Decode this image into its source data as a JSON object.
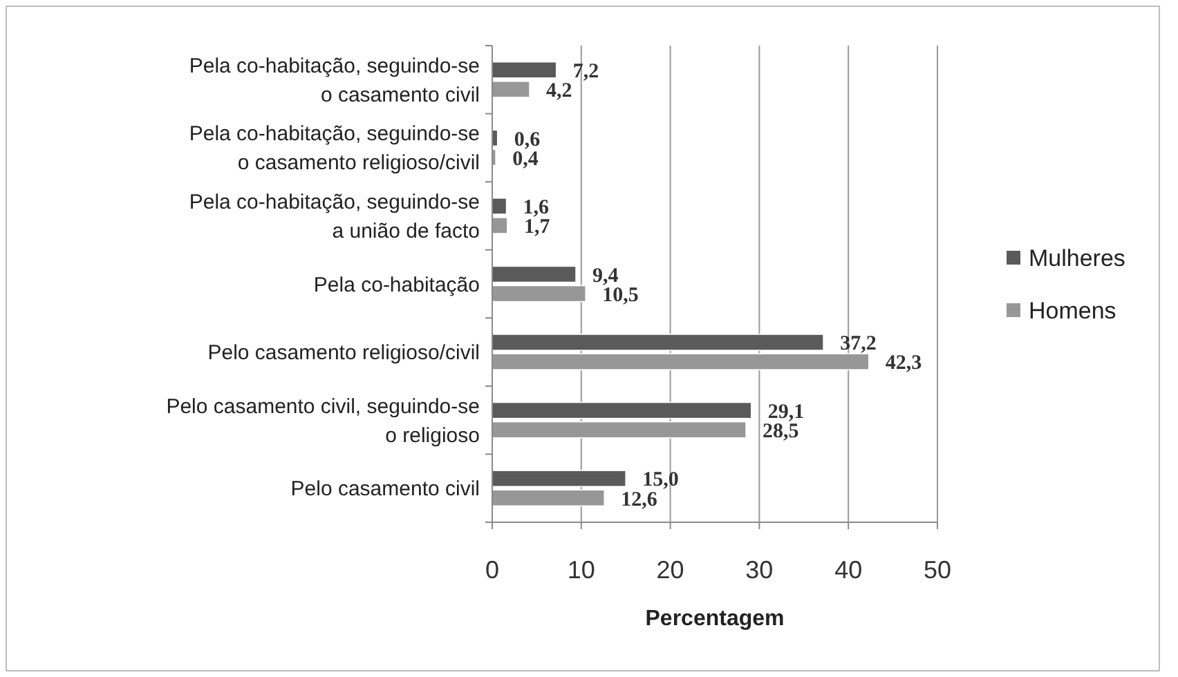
{
  "chart_data": {
    "type": "bar",
    "orientation": "horizontal",
    "xlabel": "Percentagem",
    "categories": [
      "Pela co-habitação, seguindo-se\no casamento civil",
      "Pela co-habitação, seguindo-se\no casamento religioso/civil",
      "Pela co-habitação, seguindo-se\na união de facto",
      "Pela co-habitação",
      "Pelo casamento religioso/civil",
      "Pelo casamento civil, seguindo-se\no religioso",
      "Pelo casamento civil"
    ],
    "series": [
      {
        "name": "Mulheres",
        "color": "#5a5a5a",
        "values": [
          7.2,
          0.6,
          1.6,
          9.4,
          37.2,
          29.1,
          15.0
        ],
        "value_labels": [
          "7,2",
          "0,6",
          "1,6",
          "9,4",
          "37,2",
          "29,1",
          "15,0"
        ]
      },
      {
        "name": "Homens",
        "color": "#979797",
        "values": [
          4.2,
          0.4,
          1.7,
          10.5,
          42.3,
          28.5,
          12.6
        ],
        "value_labels": [
          "4,2",
          "0,4",
          "1,7",
          "10,5",
          "42,3",
          "28,5",
          "12,6"
        ]
      }
    ],
    "xlim": [
      0,
      50
    ],
    "xticks": [
      0,
      10,
      20,
      30,
      40,
      50
    ],
    "grid": "x",
    "legend": "right"
  }
}
